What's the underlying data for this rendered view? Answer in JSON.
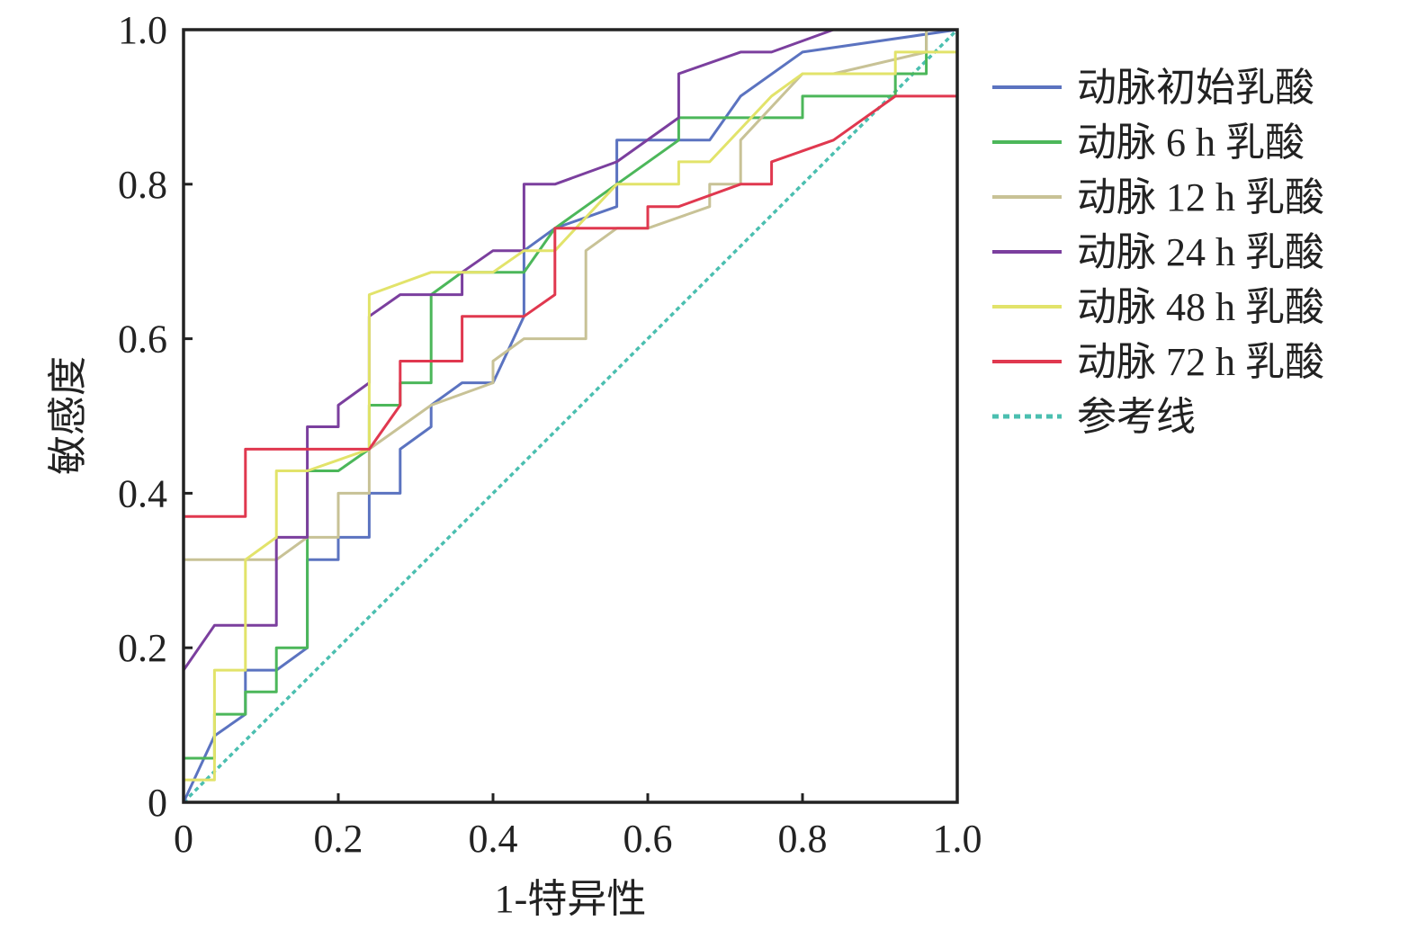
{
  "chart_data": {
    "type": "line",
    "title": "",
    "xlabel": "1-特异性",
    "ylabel": "敏感度",
    "xlim": [
      0,
      1
    ],
    "ylim": [
      0,
      1
    ],
    "xticks": [
      "0",
      "0.2",
      "0.4",
      "0.6",
      "0.8",
      "1.0"
    ],
    "yticks": [
      "0",
      "0.2",
      "0.4",
      "0.6",
      "0.8",
      "1.0"
    ],
    "xtick_values": [
      0,
      0.2,
      0.4,
      0.6,
      0.8,
      1.0
    ],
    "ytick_values": [
      0,
      0.2,
      0.4,
      0.6,
      0.8,
      1.0
    ],
    "grid": false,
    "legend_position": "right",
    "series": [
      {
        "name": "动脉初始乳酸",
        "color": "#5b73c0",
        "dash": false,
        "points": [
          [
            0,
            0
          ],
          [
            0.04,
            0.086
          ],
          [
            0.08,
            0.114
          ],
          [
            0.08,
            0.171
          ],
          [
            0.12,
            0.171
          ],
          [
            0.16,
            0.2
          ],
          [
            0.16,
            0.314
          ],
          [
            0.2,
            0.314
          ],
          [
            0.2,
            0.343
          ],
          [
            0.24,
            0.343
          ],
          [
            0.24,
            0.4
          ],
          [
            0.28,
            0.4
          ],
          [
            0.28,
            0.457
          ],
          [
            0.32,
            0.486
          ],
          [
            0.32,
            0.514
          ],
          [
            0.36,
            0.543
          ],
          [
            0.4,
            0.543
          ],
          [
            0.44,
            0.629
          ],
          [
            0.44,
            0.714
          ],
          [
            0.48,
            0.743
          ],
          [
            0.56,
            0.771
          ],
          [
            0.56,
            0.857
          ],
          [
            0.68,
            0.857
          ],
          [
            0.72,
            0.914
          ],
          [
            0.8,
            0.971
          ],
          [
            1,
            1
          ]
        ]
      },
      {
        "name": "动脉 6 h 乳酸",
        "color": "#4cb75a",
        "dash": false,
        "points": [
          [
            0,
            0
          ],
          [
            0,
            0.057
          ],
          [
            0.04,
            0.057
          ],
          [
            0.04,
            0.114
          ],
          [
            0.08,
            0.114
          ],
          [
            0.08,
            0.143
          ],
          [
            0.12,
            0.143
          ],
          [
            0.12,
            0.2
          ],
          [
            0.16,
            0.2
          ],
          [
            0.16,
            0.429
          ],
          [
            0.2,
            0.429
          ],
          [
            0.24,
            0.457
          ],
          [
            0.24,
            0.514
          ],
          [
            0.28,
            0.514
          ],
          [
            0.28,
            0.543
          ],
          [
            0.32,
            0.543
          ],
          [
            0.32,
            0.657
          ],
          [
            0.36,
            0.686
          ],
          [
            0.44,
            0.686
          ],
          [
            0.48,
            0.743
          ],
          [
            0.64,
            0.857
          ],
          [
            0.64,
            0.886
          ],
          [
            0.8,
            0.886
          ],
          [
            0.8,
            0.914
          ],
          [
            0.92,
            0.914
          ],
          [
            0.92,
            0.943
          ],
          [
            0.96,
            0.943
          ],
          [
            0.96,
            1
          ],
          [
            1,
            1
          ]
        ]
      },
      {
        "name": "动脉 12 h 乳酸",
        "color": "#c8c296",
        "dash": false,
        "points": [
          [
            0,
            0
          ],
          [
            0,
            0.314
          ],
          [
            0.12,
            0.314
          ],
          [
            0.16,
            0.343
          ],
          [
            0.2,
            0.343
          ],
          [
            0.2,
            0.4
          ],
          [
            0.24,
            0.4
          ],
          [
            0.24,
            0.457
          ],
          [
            0.32,
            0.514
          ],
          [
            0.4,
            0.543
          ],
          [
            0.4,
            0.571
          ],
          [
            0.44,
            0.6
          ],
          [
            0.52,
            0.6
          ],
          [
            0.52,
            0.714
          ],
          [
            0.56,
            0.743
          ],
          [
            0.6,
            0.743
          ],
          [
            0.68,
            0.771
          ],
          [
            0.68,
            0.8
          ],
          [
            0.72,
            0.8
          ],
          [
            0.72,
            0.857
          ],
          [
            0.8,
            0.943
          ],
          [
            0.84,
            0.943
          ],
          [
            0.96,
            0.971
          ],
          [
            0.96,
            1
          ],
          [
            1,
            1
          ]
        ]
      },
      {
        "name": "动脉 24 h 乳酸",
        "color": "#7b3f9e",
        "dash": false,
        "points": [
          [
            0,
            0
          ],
          [
            0,
            0.171
          ],
          [
            0.04,
            0.229
          ],
          [
            0.12,
            0.229
          ],
          [
            0.12,
            0.343
          ],
          [
            0.16,
            0.343
          ],
          [
            0.16,
            0.486
          ],
          [
            0.2,
            0.486
          ],
          [
            0.2,
            0.514
          ],
          [
            0.24,
            0.543
          ],
          [
            0.24,
            0.629
          ],
          [
            0.28,
            0.657
          ],
          [
            0.36,
            0.657
          ],
          [
            0.36,
            0.686
          ],
          [
            0.4,
            0.714
          ],
          [
            0.44,
            0.714
          ],
          [
            0.44,
            0.8
          ],
          [
            0.48,
            0.8
          ],
          [
            0.56,
            0.829
          ],
          [
            0.64,
            0.886
          ],
          [
            0.64,
            0.943
          ],
          [
            0.72,
            0.971
          ],
          [
            0.76,
            0.971
          ],
          [
            0.84,
            1
          ],
          [
            1,
            1
          ]
        ]
      },
      {
        "name": "动脉 48 h 乳酸",
        "color": "#e2e36a",
        "dash": false,
        "points": [
          [
            0,
            0
          ],
          [
            0,
            0.029
          ],
          [
            0.04,
            0.029
          ],
          [
            0.04,
            0.171
          ],
          [
            0.08,
            0.171
          ],
          [
            0.08,
            0.314
          ],
          [
            0.12,
            0.343
          ],
          [
            0.12,
            0.429
          ],
          [
            0.16,
            0.429
          ],
          [
            0.24,
            0.457
          ],
          [
            0.24,
            0.657
          ],
          [
            0.32,
            0.686
          ],
          [
            0.4,
            0.686
          ],
          [
            0.44,
            0.714
          ],
          [
            0.48,
            0.714
          ],
          [
            0.56,
            0.8
          ],
          [
            0.64,
            0.8
          ],
          [
            0.64,
            0.829
          ],
          [
            0.68,
            0.829
          ],
          [
            0.76,
            0.914
          ],
          [
            0.8,
            0.943
          ],
          [
            0.92,
            0.943
          ],
          [
            0.92,
            0.971
          ],
          [
            1,
            0.971
          ]
        ]
      },
      {
        "name": "动脉 72 h 乳酸",
        "color": "#e0384f",
        "dash": false,
        "points": [
          [
            0,
            0
          ],
          [
            0,
            0.37
          ],
          [
            0.08,
            0.37
          ],
          [
            0.08,
            0.457
          ],
          [
            0.24,
            0.457
          ],
          [
            0.28,
            0.514
          ],
          [
            0.28,
            0.571
          ],
          [
            0.36,
            0.571
          ],
          [
            0.36,
            0.629
          ],
          [
            0.44,
            0.629
          ],
          [
            0.48,
            0.657
          ],
          [
            0.48,
            0.743
          ],
          [
            0.6,
            0.743
          ],
          [
            0.6,
            0.771
          ],
          [
            0.64,
            0.771
          ],
          [
            0.72,
            0.8
          ],
          [
            0.76,
            0.8
          ],
          [
            0.76,
            0.829
          ],
          [
            0.84,
            0.857
          ],
          [
            0.92,
            0.914
          ],
          [
            1,
            0.914
          ]
        ]
      },
      {
        "name": "参考线",
        "color": "#4bbfb0",
        "dash": true,
        "points": [
          [
            0,
            0
          ],
          [
            1,
            1
          ]
        ]
      }
    ]
  }
}
